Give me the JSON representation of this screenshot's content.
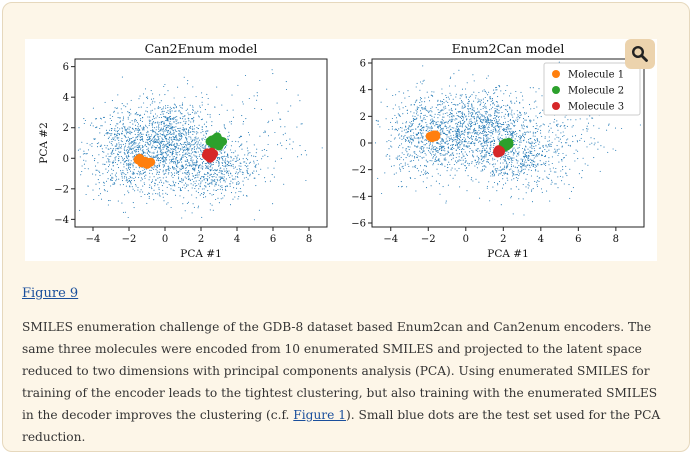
{
  "figure": {
    "link_label": "Figure 9",
    "caption_before_link": "SMILES enumeration challenge of the GDB-8 dataset based Enum2can and Can2enum encoders. The same three molecules were encoded from 10 enumerated SMILES and projected to the latent space reduced to two dimensions with principal components analysis (PCA). Using enumerated SMILES for training of the encoder leads to the tightest clustering, but also training with the enumerated SMILES in the decoder improves the clustering (c.f. ",
    "caption_link_label": "Figure 1",
    "caption_after_link": "). Small blue dots are the test set used for the PCA reduction.",
    "zoom_icon": "magnifier-icon",
    "colors": {
      "test_set": "#1f77b4",
      "molecule_1": "#ff7f0e",
      "molecule_2": "#2ca02c",
      "molecule_3": "#d62728",
      "card_bg": "#fdf6e8",
      "link": "#1a4f9c"
    }
  },
  "chart_data": [
    {
      "type": "scatter",
      "title": "Can2Enum model",
      "xlabel": "PCA #1",
      "ylabel": "PCA #2",
      "xlim": [
        -5,
        9
      ],
      "ylim": [
        -4.5,
        6.5
      ],
      "xticks": [
        -4,
        -2,
        0,
        2,
        4,
        6,
        8
      ],
      "yticks": [
        -4,
        -2,
        0,
        2,
        4,
        6
      ],
      "series": [
        {
          "name": "Molecule 1",
          "color": "#ff7f0e",
          "points": [
            [
              -1.5,
              -0.1
            ],
            [
              -1.3,
              -0.3
            ],
            [
              -1.1,
              -0.2
            ],
            [
              -0.9,
              -0.3
            ],
            [
              -1.4,
              0.0
            ],
            [
              -1.0,
              -0.4
            ],
            [
              -1.2,
              -0.2
            ],
            [
              -0.8,
              -0.25
            ],
            [
              -1.35,
              -0.15
            ],
            [
              -0.95,
              -0.35
            ]
          ]
        },
        {
          "name": "Molecule 2",
          "color": "#2ca02c",
          "points": [
            [
              2.5,
              1.1
            ],
            [
              2.8,
              1.3
            ],
            [
              3.0,
              1.2
            ],
            [
              3.1,
              1.0
            ],
            [
              2.7,
              0.9
            ],
            [
              2.9,
              1.4
            ],
            [
              3.2,
              1.1
            ],
            [
              2.6,
              1.2
            ],
            [
              3.0,
              0.8
            ],
            [
              2.8,
              1.0
            ]
          ]
        },
        {
          "name": "Molecule 3",
          "color": "#d62728",
          "points": [
            [
              2.3,
              0.2
            ],
            [
              2.5,
              0.3
            ],
            [
              2.6,
              0.4
            ],
            [
              2.4,
              0.1
            ],
            [
              2.5,
              0.0
            ],
            [
              2.7,
              0.3
            ],
            [
              2.35,
              0.35
            ],
            [
              2.55,
              0.15
            ],
            [
              2.45,
              0.25
            ],
            [
              2.6,
              0.1
            ]
          ]
        }
      ],
      "legend": "none"
    },
    {
      "type": "scatter",
      "title": "Enum2Can model",
      "xlabel": "PCA #1",
      "ylabel": "",
      "xlim": [
        -5,
        9.5
      ],
      "ylim": [
        -6.3,
        6.3
      ],
      "xticks": [
        -4,
        -2,
        0,
        2,
        4,
        6,
        8
      ],
      "yticks": [
        -6,
        -4,
        -2,
        0,
        2,
        4,
        6
      ],
      "series": [
        {
          "name": "Molecule 1",
          "color": "#ff7f0e",
          "points": [
            [
              -1.9,
              0.5
            ],
            [
              -1.7,
              0.6
            ],
            [
              -1.6,
              0.5
            ],
            [
              -1.8,
              0.4
            ],
            [
              -1.75,
              0.55
            ],
            [
              -1.65,
              0.6
            ],
            [
              -1.85,
              0.5
            ],
            [
              -1.7,
              0.45
            ],
            [
              -1.6,
              0.6
            ],
            [
              -1.8,
              0.55
            ]
          ]
        },
        {
          "name": "Molecule 2",
          "color": "#2ca02c",
          "points": [
            [
              2.0,
              -0.2
            ],
            [
              2.2,
              0.0
            ],
            [
              2.3,
              -0.1
            ],
            [
              2.1,
              -0.3
            ],
            [
              2.2,
              -0.2
            ],
            [
              2.3,
              0.05
            ],
            [
              2.0,
              -0.1
            ],
            [
              2.15,
              -0.25
            ],
            [
              2.25,
              -0.15
            ],
            [
              2.1,
              0.0
            ]
          ]
        },
        {
          "name": "Molecule 3",
          "color": "#d62728",
          "points": [
            [
              1.7,
              -0.6
            ],
            [
              1.8,
              -0.7
            ],
            [
              1.75,
              -0.5
            ],
            [
              1.85,
              -0.65
            ],
            [
              1.7,
              -0.75
            ],
            [
              1.8,
              -0.55
            ],
            [
              1.75,
              -0.7
            ],
            [
              1.85,
              -0.6
            ],
            [
              1.7,
              -0.65
            ],
            [
              1.8,
              -0.6
            ]
          ]
        }
      ],
      "legend": "top-right"
    }
  ]
}
